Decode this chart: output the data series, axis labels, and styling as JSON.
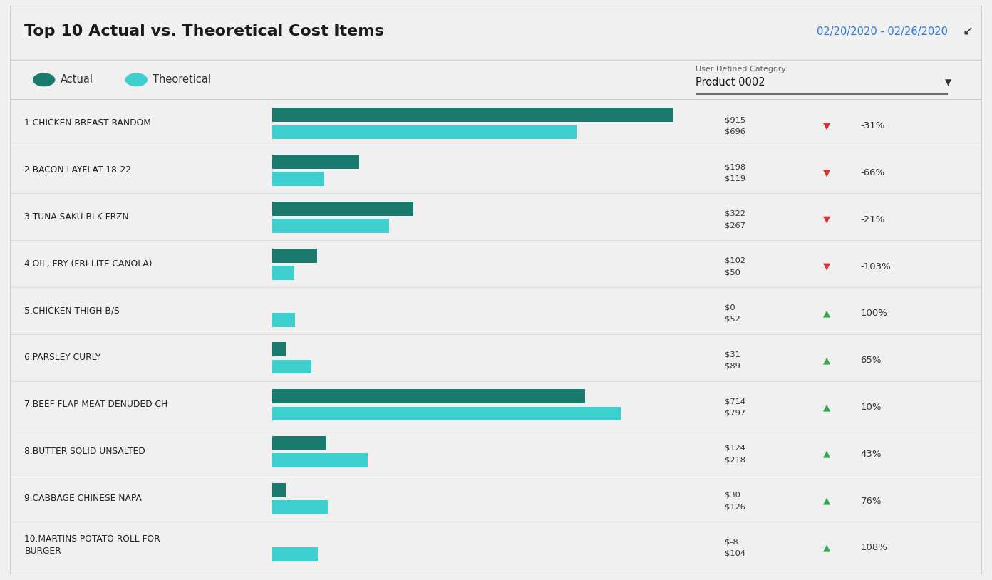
{
  "title": "Top 10 Actual vs. Theoretical Cost Items",
  "date_range": "02/20/2020 - 02/26/2020",
  "legend_actual": "Actual",
  "legend_theoretical": "Theoretical",
  "category_label": "User Defined Category",
  "category_value": "Product 0002",
  "color_actual": "#1a7a6e",
  "color_theoretical": "#3ecfcf",
  "background_color": "#f0f0f0",
  "panel_color": "#ffffff",
  "items": [
    {
      "label": "1.CHICKEN BREAST RANDOM",
      "actual": 915,
      "theoretical": 696,
      "actual_str": "$915",
      "theoretical_str": "$696",
      "variance_pct": "-31%",
      "variance_positive": false
    },
    {
      "label": "2.BACON LAYFLAT 18-22",
      "actual": 198,
      "theoretical": 119,
      "actual_str": "$198",
      "theoretical_str": "$119",
      "variance_pct": "-66%",
      "variance_positive": false
    },
    {
      "label": "3.TUNA SAKU BLK FRZN",
      "actual": 322,
      "theoretical": 267,
      "actual_str": "$322",
      "theoretical_str": "$267",
      "variance_pct": "-21%",
      "variance_positive": false
    },
    {
      "label": "4.OIL, FRY (FRI-LITE CANOLA)",
      "actual": 102,
      "theoretical": 50,
      "actual_str": "$102",
      "theoretical_str": "$50",
      "variance_pct": "-103%",
      "variance_positive": false
    },
    {
      "label": "5.CHICKEN THIGH B/S",
      "actual": 0,
      "theoretical": 52,
      "actual_str": "$0",
      "theoretical_str": "$52",
      "variance_pct": "100%",
      "variance_positive": true
    },
    {
      "label": "6.PARSLEY CURLY",
      "actual": 31,
      "theoretical": 89,
      "actual_str": "$31",
      "theoretical_str": "$89",
      "variance_pct": "65%",
      "variance_positive": true
    },
    {
      "label": "7.BEEF FLAP MEAT DENUDED CH",
      "actual": 714,
      "theoretical": 797,
      "actual_str": "$714",
      "theoretical_str": "$797",
      "variance_pct": "10%",
      "variance_positive": true
    },
    {
      "label": "8.BUTTER SOLID UNSALTED",
      "actual": 124,
      "theoretical": 218,
      "actual_str": "$124",
      "theoretical_str": "$218",
      "variance_pct": "43%",
      "variance_positive": true
    },
    {
      "label": "9.CABBAGE CHINESE NAPA",
      "actual": 30,
      "theoretical": 126,
      "actual_str": "$30",
      "theoretical_str": "$126",
      "variance_pct": "76%",
      "variance_positive": true
    },
    {
      "label": "10.MARTINS POTATO ROLL FOR\nBURGER",
      "actual": -8,
      "theoretical": 104,
      "actual_str": "$-8",
      "theoretical_str": "$104",
      "variance_pct": "108%",
      "variance_positive": true
    }
  ],
  "max_bar_value": 1000
}
